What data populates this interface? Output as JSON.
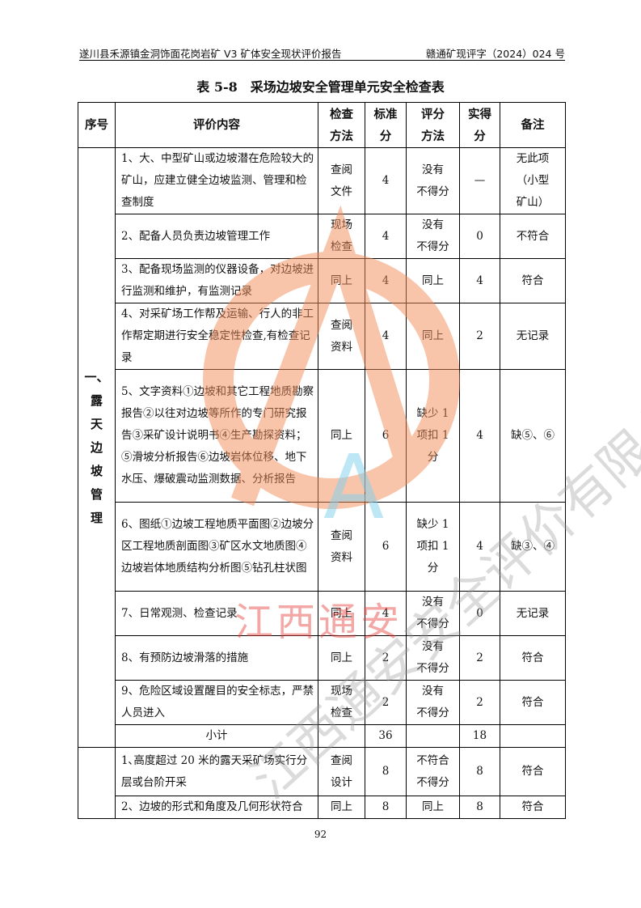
{
  "header": {
    "left": "遂川县禾源镇金洞饰面花岗岩矿 V3 矿体安全现状评价报告",
    "right": "赣通矿现评字（2024）024 号"
  },
  "title": "表 5-8　采场边坡安全管理单元安全检查表",
  "columns": [
    "序号",
    "评价内容",
    "检查\n方法",
    "标准\n分",
    "评分\n方法",
    "实得\n分",
    "备注"
  ],
  "sections": [
    {
      "label": "一、\n露\n天\n边\n坡\n管\n理",
      "rows": [
        {
          "content": "1、大、中型矿山或边坡潜在危险较大的矿山，应建立健全边坡监测、管理和检查制度",
          "method": "查阅\n文件",
          "std": "4",
          "scoring": "没有\n不得分",
          "got": "—",
          "note": "无此项\n（小型\n矿山）"
        },
        {
          "content": "2、配备人员负责边坡管理工作",
          "method": "现场\n检查",
          "std": "4",
          "scoring": "没有\n不得分",
          "got": "0",
          "note": "不符合"
        },
        {
          "content": " 3、配备现场监测的仪器设备，对边坡进行监测和维护，有监测记录",
          "method": "同上",
          "std": "4",
          "scoring": "同上",
          "got": "4",
          "note": "符合"
        },
        {
          "content": "4、对采矿场工作帮及运输、行人的非工作帮定期进行安全稳定性检查,有检查记录",
          "method": "查阅\n资料",
          "std": "4",
          "scoring": "同上",
          "got": "2",
          "note": "无记录"
        },
        {
          "content": " 5、文字资料①边坡和其它工程地质勘察报告②以往对边坡等所作的专门研究报告③采矿设计说明书④生产勘探资料；⑤滑坡分析报告⑥边坡岩体位移、地下水压、爆破震动监测数据、分析报告",
          "method": "同上",
          "std": "6",
          "scoring": "缺少 1\n项扣 1\n分",
          "got": "4",
          "note": "缺⑤、⑥"
        },
        {
          "content": "6、图纸①边坡工程地质平面图②边坡分区工程地质剖面图③矿区水文地质图④边坡岩体地质结构分析图⑤钻孔柱状图",
          "method": "查阅\n资料",
          "std": "6",
          "scoring": "缺少 1\n项扣 1\n分",
          "got": "4",
          "note": "缺③、④"
        },
        {
          "content": "7、日常观测、检查记录",
          "method": "同上",
          "std": "4",
          "scoring": "没有\n不得分",
          "got": "0",
          "note": "无记录"
        },
        {
          "content": "8、有预防边坡滑落的措施",
          "method": "同上",
          "std": "2",
          "scoring": "没有\n不得分",
          "got": "2",
          "note": "符合"
        },
        {
          "content": "9、危险区域设置醒目的安全标志，严禁人员进入",
          "method": "现场\n检查",
          "std": "2",
          "scoring": "没有\n不得分",
          "got": "2",
          "note": "符合"
        }
      ],
      "subtotal": {
        "label": "小计",
        "std": "36",
        "got": "18"
      }
    },
    {
      "label": "",
      "rows": [
        {
          "content": "1､高度超过 20 米的露天采矿场实行分层或台阶开采",
          "method": "查阅\n设计",
          "std": "8",
          "scoring": "不符合\n不得分",
          "got": "8",
          "note": "符合"
        },
        {
          "content": "2、边坡的形式和角度及几何形状符合",
          "method": "同上",
          "std": "8",
          "scoring": "同上",
          "got": "8",
          "note": "符合"
        }
      ]
    }
  ],
  "page_number": "92",
  "watermark": {
    "company": "江西通安安全评价有限公司",
    "stamp": "江西通安",
    "letter": "A",
    "color": "#f28c5a",
    "text_color": "#e8403a"
  }
}
